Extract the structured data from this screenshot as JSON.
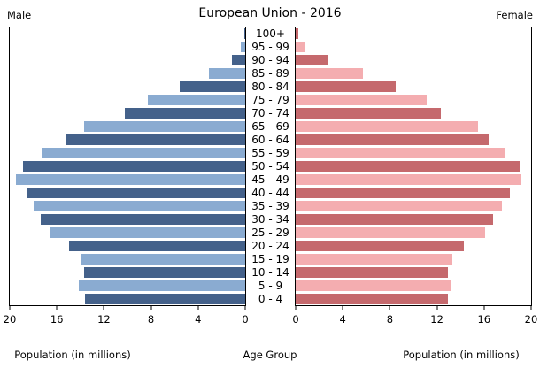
{
  "chart_data": {
    "type": "bar",
    "subtype": "population-pyramid",
    "title": "European Union - 2016",
    "left_header": "Male",
    "right_header": "Female",
    "center_label": "Age Group",
    "left_axis_label": "Population (in millions)",
    "right_axis_label": "Population (in millions)",
    "categories_top_to_bottom": [
      "100+",
      "95 - 99",
      "90 - 94",
      "85 - 89",
      "80 - 84",
      "75 - 79",
      "70 - 74",
      "65 - 69",
      "60 - 64",
      "55 - 59",
      "50 - 54",
      "45 - 49",
      "40 - 44",
      "35 - 39",
      "30 - 34",
      "25 - 29",
      "20 - 24",
      "15 - 19",
      "10 - 14",
      "5 - 9",
      "0 - 4"
    ],
    "series": [
      {
        "name": "Male",
        "side": "left",
        "values": [
          0.1,
          0.4,
          1.1,
          3.1,
          5.6,
          8.3,
          10.2,
          13.7,
          15.3,
          17.3,
          18.9,
          19.5,
          18.6,
          18.0,
          17.4,
          16.6,
          15.0,
          14.0,
          13.7,
          14.1,
          13.6
        ]
      },
      {
        "name": "Female",
        "side": "right",
        "values": [
          0.2,
          0.8,
          2.8,
          5.7,
          8.5,
          11.1,
          12.3,
          15.5,
          16.4,
          17.8,
          19.0,
          19.2,
          18.2,
          17.5,
          16.8,
          16.1,
          14.3,
          13.3,
          12.9,
          13.2,
          12.9
        ]
      }
    ],
    "x_axis": {
      "max": 20,
      "ticks_left_to_right_male": [
        20,
        16,
        12,
        8,
        4,
        0
      ],
      "ticks_left_to_right_female": [
        0,
        4,
        8,
        12,
        16,
        20
      ]
    },
    "colors": {
      "male_dark": "#44618a",
      "male_light": "#8aabd1",
      "female_dark": "#c5696d",
      "female_light": "#f4adb0",
      "plot_border": "#000000",
      "background": "#ffffff",
      "text": "#000000"
    },
    "grid": false,
    "legend": "none",
    "alternating_row_shades": "even rows (100+, 90-94, ...) dark; odd rows light"
  }
}
